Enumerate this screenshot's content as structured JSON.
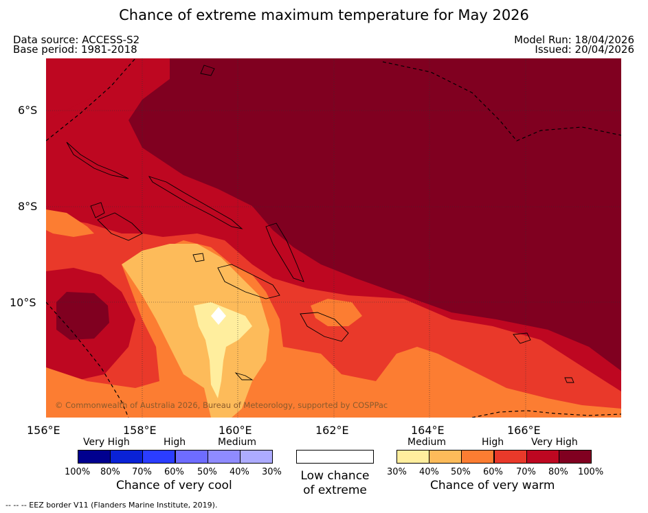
{
  "title": "Chance of extreme maximum temperature for May 2026",
  "data_source": "Data source: ACCESS-S2",
  "base_period": "Base period: 1981-2018",
  "model_run": "Model Run: 18/04/2026",
  "issued": "Issued: 20/04/2026",
  "lat_labels": [
    "6°S",
    "8°S",
    "10°S"
  ],
  "lon_labels": [
    "156°E",
    "158°E",
    "160°E",
    "162°E",
    "164°E",
    "166°E"
  ],
  "copyright": "© Commonwealth of Australia 2026, Bureau of Meteorology, supported by COSPPac",
  "cool_legend": {
    "title": "Chance of very cool",
    "categories": [
      "Very High",
      "High",
      "Medium"
    ],
    "ticks": [
      "100%",
      "80%",
      "70%",
      "60%",
      "50%",
      "40%",
      "30%"
    ],
    "colors": [
      "#00008f",
      "#0a22d6",
      "#2b3dff",
      "#6e6cff",
      "#8f8bff",
      "#adabff"
    ]
  },
  "neutral_legend": {
    "line1": "Low chance",
    "line2": "of extreme",
    "color": "#ffffff"
  },
  "warm_legend": {
    "title": "Chance of very warm",
    "categories": [
      "Medium",
      "High",
      "Very High"
    ],
    "ticks": [
      "30%",
      "40%",
      "50%",
      "60%",
      "70%",
      "80%",
      "100%"
    ],
    "colors": [
      "#ffee9e",
      "#fdbb5a",
      "#fc7d32",
      "#e9392a",
      "#be0721",
      "#800020"
    ]
  },
  "footnote": "--  --  -- EEZ border V11 (Flanders Marine Institute, 2019)."
}
